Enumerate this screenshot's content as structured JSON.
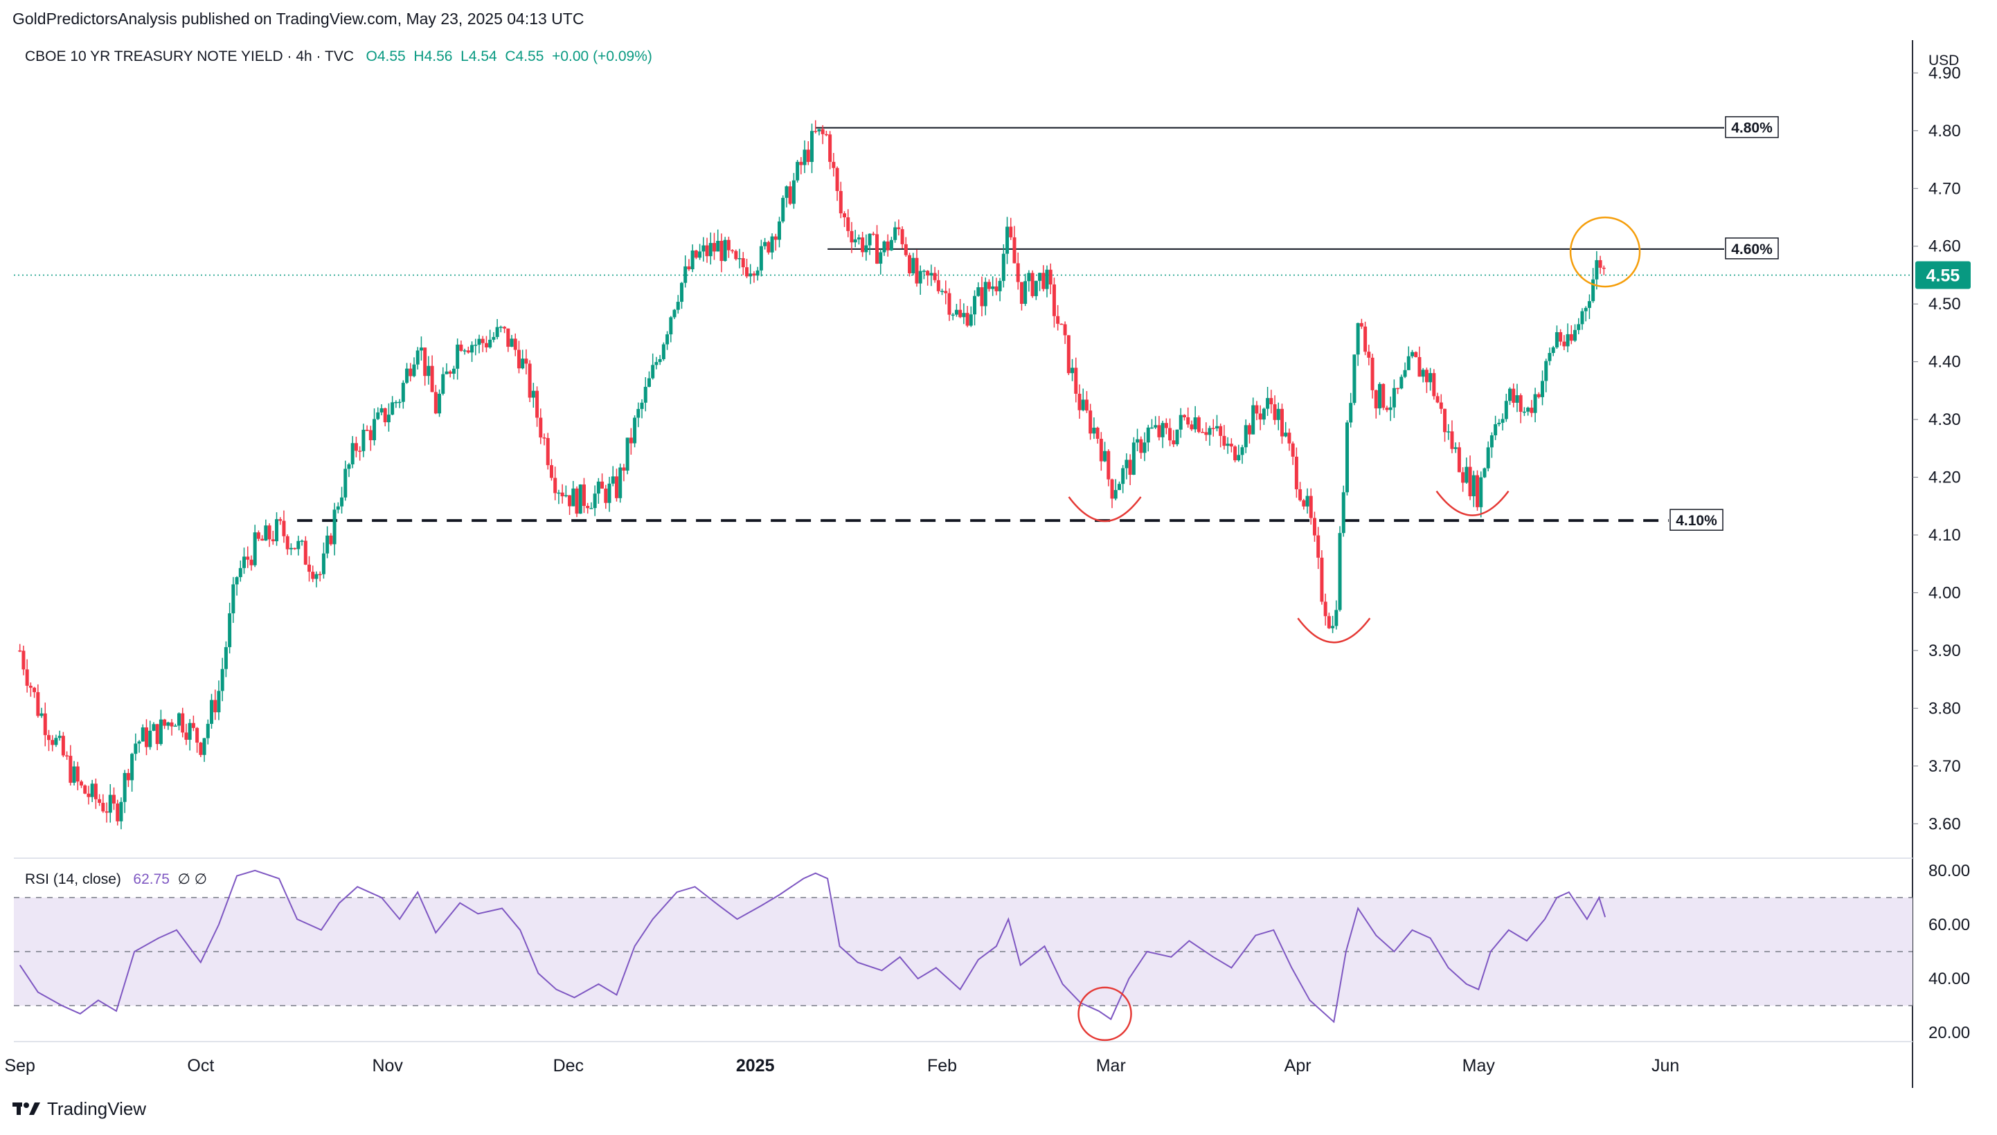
{
  "header": {
    "publisher": "GoldPredictorsAnalysis published on TradingView.com, May 23, 2025 04:13 UTC"
  },
  "footer": {
    "brand": "TradingView"
  },
  "legend": {
    "symbol": "CBOE 10 YR TREASURY NOTE YIELD · 4h · TVC",
    "open": "O4.55",
    "high": "H4.56",
    "low": "L4.54",
    "close": "C4.55",
    "change": "+0.00 (+0.09%)"
  },
  "rsi_legend": {
    "label": "RSI (14, close)",
    "value": "62.75",
    "extra": "∅ ∅"
  },
  "price_scale": {
    "currency": "USD",
    "last_price": "4.55"
  },
  "colors": {
    "up": "#089981",
    "down": "#f23645",
    "rsi": "#7e57c2",
    "rsi_band": "#ede7f6",
    "accent_circle": "#f59e0b",
    "red_mark": "#e53935"
  },
  "chart_data": [
    {
      "type": "candlestick",
      "title": "CBOE 10 YR TREASURY NOTE YIELD",
      "interval": "4h",
      "y_axis": {
        "ticks": [
          3.6,
          3.7,
          3.8,
          3.9,
          4.0,
          4.1,
          4.2,
          4.3,
          4.4,
          4.5,
          4.6,
          4.7,
          4.8,
          4.9
        ],
        "tick_labels": [
          "3.60",
          "3.70",
          "3.80",
          "3.90",
          "4.00",
          "4.10",
          "4.20",
          "4.30",
          "4.40",
          "4.50",
          "4.60",
          "4.70",
          "4.80",
          "4.90"
        ],
        "range": [
          3.55,
          4.94
        ],
        "unit": "USD"
      },
      "x_axis": {
        "labels": [
          "Sep",
          "Oct",
          "Nov",
          "Dec",
          "2025",
          "Feb",
          "Mar",
          "Apr",
          "May",
          "Jun"
        ],
        "range": [
          "2024-08-31",
          "2025-07-12"
        ]
      },
      "path_points": [
        [
          "2024-09-01",
          3.9
        ],
        [
          "2024-09-04",
          3.8
        ],
        [
          "2024-09-08",
          3.72
        ],
        [
          "2024-09-11",
          3.66
        ],
        [
          "2024-09-14",
          3.64
        ],
        [
          "2024-09-17",
          3.62
        ],
        [
          "2024-09-20",
          3.74
        ],
        [
          "2024-09-24",
          3.76
        ],
        [
          "2024-09-27",
          3.79
        ],
        [
          "2024-10-01",
          3.74
        ],
        [
          "2024-10-04",
          3.83
        ],
        [
          "2024-10-07",
          4.03
        ],
        [
          "2024-10-10",
          4.08
        ],
        [
          "2024-10-14",
          4.11
        ],
        [
          "2024-10-17",
          4.08
        ],
        [
          "2024-10-21",
          4.03
        ],
        [
          "2024-10-24",
          4.17
        ],
        [
          "2024-10-27",
          4.26
        ],
        [
          "2024-10-31",
          4.3
        ],
        [
          "2024-11-03",
          4.34
        ],
        [
          "2024-11-06",
          4.44
        ],
        [
          "2024-11-09",
          4.32
        ],
        [
          "2024-11-13",
          4.44
        ],
        [
          "2024-11-16",
          4.43
        ],
        [
          "2024-11-20",
          4.45
        ],
        [
          "2024-11-23",
          4.41
        ],
        [
          "2024-11-26",
          4.3
        ],
        [
          "2024-11-29",
          4.19
        ],
        [
          "2024-12-02",
          4.16
        ],
        [
          "2024-12-06",
          4.17
        ],
        [
          "2024-12-09",
          4.18
        ],
        [
          "2024-12-12",
          4.29
        ],
        [
          "2024-12-15",
          4.38
        ],
        [
          "2024-12-19",
          4.52
        ],
        [
          "2024-12-22",
          4.58
        ],
        [
          "2024-12-26",
          4.6
        ],
        [
          "2024-12-29",
          4.56
        ],
        [
          "2025-01-02",
          4.58
        ],
        [
          "2025-01-05",
          4.65
        ],
        [
          "2025-01-09",
          4.75
        ],
        [
          "2025-01-11",
          4.79
        ],
        [
          "2025-01-13",
          4.79
        ],
        [
          "2025-01-15",
          4.66
        ],
        [
          "2025-01-18",
          4.61
        ],
        [
          "2025-01-22",
          4.59
        ],
        [
          "2025-01-25",
          4.63
        ],
        [
          "2025-01-28",
          4.53
        ],
        [
          "2025-01-31",
          4.55
        ],
        [
          "2025-02-04",
          4.47
        ],
        [
          "2025-02-07",
          4.51
        ],
        [
          "2025-02-10",
          4.54
        ],
        [
          "2025-02-12",
          4.62
        ],
        [
          "2025-02-14",
          4.52
        ],
        [
          "2025-02-18",
          4.55
        ],
        [
          "2025-02-21",
          4.44
        ],
        [
          "2025-02-24",
          4.32
        ],
        [
          "2025-02-27",
          4.27
        ],
        [
          "2025-03-01",
          4.18
        ],
        [
          "2025-03-04",
          4.22
        ],
        [
          "2025-03-07",
          4.28
        ],
        [
          "2025-03-11",
          4.27
        ],
        [
          "2025-03-14",
          4.31
        ],
        [
          "2025-03-18",
          4.28
        ],
        [
          "2025-03-21",
          4.24
        ],
        [
          "2025-03-25",
          4.31
        ],
        [
          "2025-03-28",
          4.33
        ],
        [
          "2025-03-31",
          4.23
        ],
        [
          "2025-04-03",
          4.13
        ],
        [
          "2025-04-05",
          4.0
        ],
        [
          "2025-04-07",
          3.93
        ],
        [
          "2025-04-09",
          4.25
        ],
        [
          "2025-04-11",
          4.49
        ],
        [
          "2025-04-14",
          4.34
        ],
        [
          "2025-04-17",
          4.33
        ],
        [
          "2025-04-20",
          4.4
        ],
        [
          "2025-04-23",
          4.37
        ],
        [
          "2025-04-26",
          4.27
        ],
        [
          "2025-04-29",
          4.2
        ],
        [
          "2025-05-01",
          4.17
        ],
        [
          "2025-05-03",
          4.28
        ],
        [
          "2025-05-06",
          4.34
        ],
        [
          "2025-05-09",
          4.31
        ],
        [
          "2025-05-12",
          4.38
        ],
        [
          "2025-05-14",
          4.45
        ],
        [
          "2025-05-16",
          4.42
        ],
        [
          "2025-05-19",
          4.51
        ],
        [
          "2025-05-21",
          4.58
        ],
        [
          "2025-05-22",
          4.55
        ]
      ],
      "annotations": {
        "horizontal_levels": [
          {
            "label": "4.80%",
            "value": 4.805,
            "from": "2025-01-11",
            "style": "solid"
          },
          {
            "label": "4.60%",
            "value": 4.595,
            "from": "2025-01-13",
            "style": "solid"
          },
          {
            "label": "4.10%",
            "value": 4.125,
            "from": "2024-10-17",
            "style": "dashed"
          }
        ],
        "last_price_line": 4.55,
        "arcs": [
          {
            "date": "2025-02-28",
            "value": 4.13
          },
          {
            "date": "2025-04-07",
            "value": 3.92
          },
          {
            "date": "2025-04-30",
            "value": 4.14
          }
        ],
        "highlight_circle": {
          "date": "2025-05-22",
          "value": 4.59
        }
      }
    },
    {
      "type": "line",
      "title": "RSI (14, close)",
      "y_axis": {
        "ticks": [
          20,
          40,
          60,
          80
        ],
        "tick_labels": [
          "20.00",
          "40.00",
          "60.00",
          "80.00"
        ],
        "range": [
          18,
          82
        ]
      },
      "bands": {
        "upper": 70,
        "middle": 50,
        "lower": 30
      },
      "series": [
        {
          "name": "RSI",
          "points": [
            [
              "2024-09-01",
              45
            ],
            [
              "2024-09-04",
              35
            ],
            [
              "2024-09-08",
              30
            ],
            [
              "2024-09-11",
              27
            ],
            [
              "2024-09-14",
              32
            ],
            [
              "2024-09-17",
              28
            ],
            [
              "2024-09-20",
              50
            ],
            [
              "2024-09-24",
              55
            ],
            [
              "2024-09-27",
              58
            ],
            [
              "2024-10-01",
              46
            ],
            [
              "2024-10-04",
              60
            ],
            [
              "2024-10-07",
              78
            ],
            [
              "2024-10-10",
              80
            ],
            [
              "2024-10-14",
              77
            ],
            [
              "2024-10-17",
              62
            ],
            [
              "2024-10-21",
              58
            ],
            [
              "2024-10-24",
              68
            ],
            [
              "2024-10-27",
              74
            ],
            [
              "2024-10-31",
              70
            ],
            [
              "2024-11-03",
              62
            ],
            [
              "2024-11-06",
              72
            ],
            [
              "2024-11-09",
              57
            ],
            [
              "2024-11-13",
              68
            ],
            [
              "2024-11-16",
              64
            ],
            [
              "2024-11-20",
              66
            ],
            [
              "2024-11-23",
              58
            ],
            [
              "2024-11-26",
              42
            ],
            [
              "2024-11-29",
              36
            ],
            [
              "2024-12-02",
              33
            ],
            [
              "2024-12-06",
              38
            ],
            [
              "2024-12-09",
              34
            ],
            [
              "2024-12-12",
              52
            ],
            [
              "2024-12-15",
              62
            ],
            [
              "2024-12-19",
              72
            ],
            [
              "2024-12-22",
              74
            ],
            [
              "2024-12-26",
              67
            ],
            [
              "2024-12-29",
              62
            ],
            [
              "2025-01-02",
              67
            ],
            [
              "2025-01-05",
              71
            ],
            [
              "2025-01-09",
              77
            ],
            [
              "2025-01-11",
              79
            ],
            [
              "2025-01-13",
              77
            ],
            [
              "2025-01-15",
              52
            ],
            [
              "2025-01-18",
              46
            ],
            [
              "2025-01-22",
              43
            ],
            [
              "2025-01-25",
              48
            ],
            [
              "2025-01-28",
              40
            ],
            [
              "2025-01-31",
              44
            ],
            [
              "2025-02-04",
              36
            ],
            [
              "2025-02-07",
              47
            ],
            [
              "2025-02-10",
              52
            ],
            [
              "2025-02-12",
              62
            ],
            [
              "2025-02-14",
              45
            ],
            [
              "2025-02-18",
              52
            ],
            [
              "2025-02-21",
              38
            ],
            [
              "2025-02-24",
              31
            ],
            [
              "2025-02-27",
              28
            ],
            [
              "2025-03-01",
              25
            ],
            [
              "2025-03-04",
              40
            ],
            [
              "2025-03-07",
              50
            ],
            [
              "2025-03-11",
              48
            ],
            [
              "2025-03-14",
              54
            ],
            [
              "2025-03-18",
              48
            ],
            [
              "2025-03-21",
              44
            ],
            [
              "2025-03-25",
              56
            ],
            [
              "2025-03-28",
              58
            ],
            [
              "2025-03-31",
              44
            ],
            [
              "2025-04-03",
              32
            ],
            [
              "2025-04-05",
              28
            ],
            [
              "2025-04-07",
              24
            ],
            [
              "2025-04-09",
              50
            ],
            [
              "2025-04-11",
              66
            ],
            [
              "2025-04-14",
              56
            ],
            [
              "2025-04-17",
              50
            ],
            [
              "2025-04-20",
              58
            ],
            [
              "2025-04-23",
              55
            ],
            [
              "2025-04-26",
              44
            ],
            [
              "2025-04-29",
              38
            ],
            [
              "2025-05-01",
              36
            ],
            [
              "2025-05-03",
              50
            ],
            [
              "2025-05-06",
              58
            ],
            [
              "2025-05-09",
              54
            ],
            [
              "2025-05-12",
              62
            ],
            [
              "2025-05-14",
              70
            ],
            [
              "2025-05-16",
              72
            ],
            [
              "2025-05-19",
              62
            ],
            [
              "2025-05-21",
              70
            ],
            [
              "2025-05-22",
              62.75
            ]
          ]
        }
      ],
      "annotations": {
        "circle": {
          "date": "2025-02-28",
          "value": 27
        }
      }
    }
  ]
}
